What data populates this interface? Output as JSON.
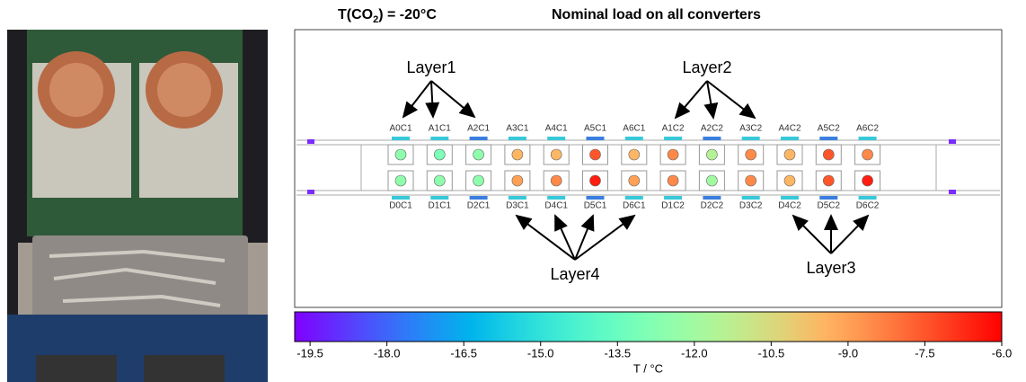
{
  "header": {
    "title": {
      "prefix": "T(CO",
      "subscript": "2",
      "suffix": ") = -20°C"
    },
    "subtitle": "Nominal load on all converters"
  },
  "modules": {
    "top": [
      {
        "label": "A0C1",
        "value": -12.5
      },
      {
        "label": "A1C1",
        "value": -13
      },
      {
        "label": "A2C1",
        "value": -12.5
      },
      {
        "label": "A3C1",
        "value": -9.5
      },
      {
        "label": "A4C1",
        "value": -9.5
      },
      {
        "label": "A5C1",
        "value": -7.5
      },
      {
        "label": "A6C1",
        "value": -9.5
      },
      {
        "label": "A1C2",
        "value": -8.5
      },
      {
        "label": "A2C2",
        "value": -11.5
      },
      {
        "label": "A3C2",
        "value": -8.5
      },
      {
        "label": "A4C2",
        "value": -9.5
      },
      {
        "label": "A5C2",
        "value": -7.5
      },
      {
        "label": "A6C2",
        "value": -8.5
      }
    ],
    "bottom": [
      {
        "label": "D0C1",
        "value": -12.5
      },
      {
        "label": "D1C1",
        "value": -12.5
      },
      {
        "label": "D2C1",
        "value": -12.5
      },
      {
        "label": "D3C1",
        "value": -9
      },
      {
        "label": "D4C1",
        "value": -8.5
      },
      {
        "label": "D5C1",
        "value": -6.5
      },
      {
        "label": "D6C1",
        "value": -9
      },
      {
        "label": "D1C2",
        "value": -8.5
      },
      {
        "label": "D2C2",
        "value": -12
      },
      {
        "label": "D3C2",
        "value": -8.5
      },
      {
        "label": "D4C2",
        "value": -9.5
      },
      {
        "label": "D5C2",
        "value": -7.5
      },
      {
        "label": "D6C2",
        "value": -6.5
      }
    ]
  },
  "layers": [
    {
      "label": "Layer1"
    },
    {
      "label": "Layer2"
    },
    {
      "label": "Layer4"
    },
    {
      "label": "Layer3"
    }
  ],
  "colorbar": {
    "colormap": "rainbow",
    "clim": [
      -19.8,
      -6.0
    ],
    "label": "T / °C",
    "ticks": [
      -19.5,
      {
        "value": -18,
        "label": "-18.0"
      },
      -16.5,
      {
        "value": -15,
        "label": "-15.0"
      },
      -13.5,
      {
        "value": -12,
        "label": "-12.0"
      },
      -10.5,
      {
        "value": -9,
        "label": "-9.0"
      },
      -7.5,
      {
        "value": -6,
        "label": "-6.0"
      }
    ]
  }
}
